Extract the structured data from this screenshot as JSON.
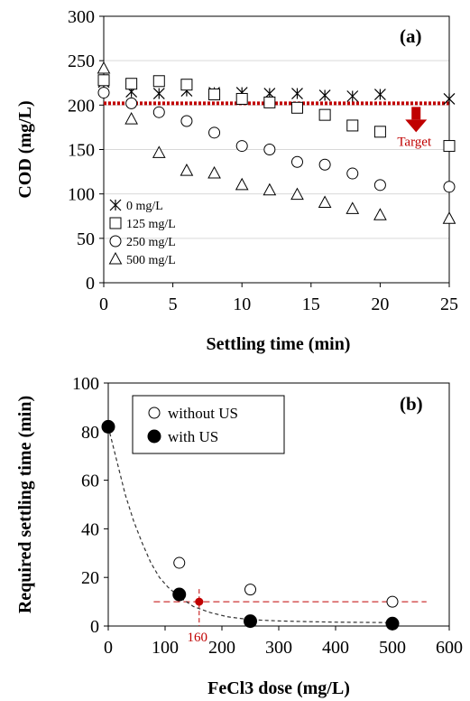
{
  "chart_data": [
    {
      "type": "scatter",
      "panel_label": "(a)",
      "xlabel": "Settling time (min)",
      "ylabel": "COD (mg/L)",
      "xlim": [
        0,
        25
      ],
      "ylim": [
        0,
        300
      ],
      "xticks": [
        "0",
        "5",
        "10",
        "15",
        "20",
        "25"
      ],
      "yticks": [
        "0",
        "50",
        "100",
        "150",
        "200",
        "250",
        "300"
      ],
      "grid": true,
      "legend_position": "bottom-left",
      "series": [
        {
          "name": "0 mg/L",
          "marker": "asterisk",
          "x": [
            0,
            2,
            4,
            6,
            8,
            10,
            12,
            14,
            16,
            18,
            20,
            25
          ],
          "y": [
            226,
            215,
            213,
            216,
            214,
            214,
            213,
            213,
            211,
            210,
            212,
            207
          ]
        },
        {
          "name": "125 mg/L",
          "marker": "square",
          "x": [
            0,
            2,
            4,
            6,
            8,
            10,
            12,
            14,
            16,
            18,
            20,
            25
          ],
          "y": [
            228,
            224,
            227,
            223,
            212,
            207,
            203,
            197,
            189,
            177,
            170,
            154
          ]
        },
        {
          "name": "250 mg/L",
          "marker": "circle",
          "x": [
            0,
            2,
            4,
            6,
            8,
            10,
            12,
            14,
            16,
            18,
            20,
            25
          ],
          "y": [
            214,
            202,
            192,
            182,
            169,
            154,
            150,
            136,
            133,
            123,
            110,
            108
          ]
        },
        {
          "name": "500 mg/L",
          "marker": "triangle",
          "x": [
            0,
            2,
            4,
            6,
            8,
            10,
            12,
            14,
            16,
            18,
            20,
            25
          ],
          "y": [
            241,
            184,
            146,
            126,
            123,
            110,
            104,
            99,
            90,
            83,
            76,
            72
          ]
        }
      ],
      "target_line": {
        "y": 202,
        "label": "Target",
        "color": "#c00000"
      }
    },
    {
      "type": "scatter",
      "panel_label": "(b)",
      "xlabel": "FeCl3 dose (mg/L)",
      "ylabel": "Required settling time (min)",
      "xlim": [
        0,
        600
      ],
      "ylim": [
        0,
        100
      ],
      "xticks": [
        "0",
        "100",
        "200",
        "300",
        "400",
        "500",
        "600"
      ],
      "yticks": [
        "0",
        "20",
        "40",
        "60",
        "80",
        "100"
      ],
      "legend_position": "top-left",
      "series": [
        {
          "name": "without US",
          "marker": "open-circle",
          "x": [
            0,
            125,
            250,
            500
          ],
          "y": [
            82,
            26,
            15,
            10
          ]
        },
        {
          "name": "with US",
          "marker": "filled-circle",
          "x": [
            0,
            125,
            250,
            500
          ],
          "y": [
            82,
            13,
            2,
            1
          ]
        }
      ],
      "fit_curve": {
        "style": "dashed",
        "x": [
          0,
          15,
          30,
          45,
          60,
          75,
          90,
          105,
          125,
          150,
          180,
          210,
          250,
          300,
          350,
          400,
          450,
          500
        ],
        "y": [
          82,
          68,
          54,
          43,
          34,
          26,
          20,
          16,
          12,
          8,
          5.5,
          3.8,
          2.6,
          2.1,
          1.8,
          1.6,
          1.5,
          1.4
        ]
      },
      "highlight_point": {
        "x": 160,
        "y": 10,
        "label": "160",
        "color": "#c00000"
      },
      "guide_lines": {
        "y": 10,
        "x_from": 80,
        "x_to": 560,
        "color": "#c00000"
      }
    }
  ]
}
